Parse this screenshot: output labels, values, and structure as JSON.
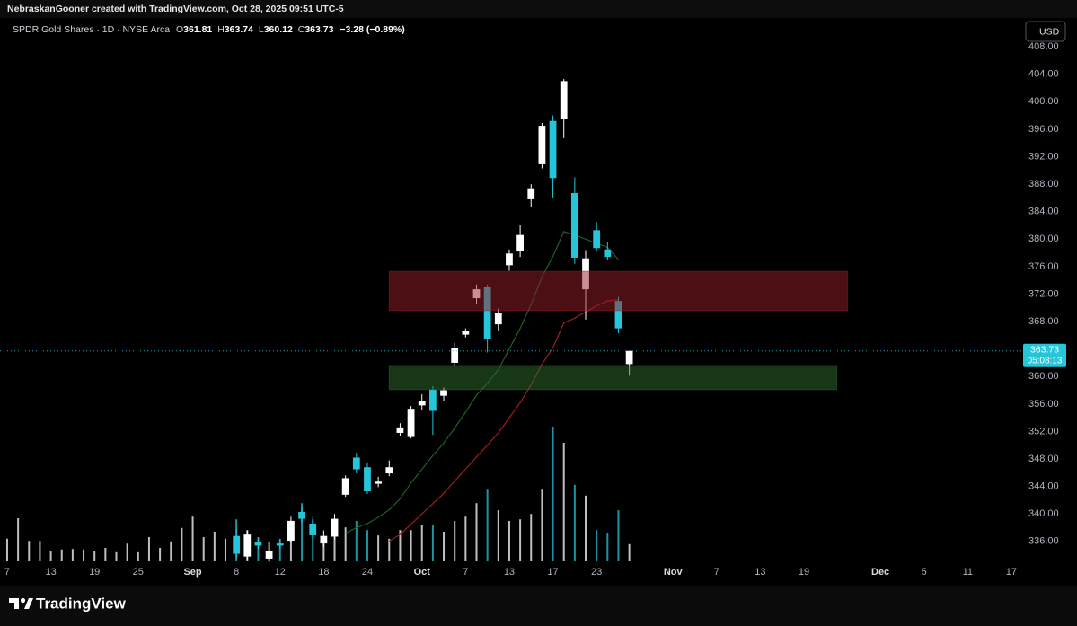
{
  "header": {
    "created_by": "NebraskanGooner created with TradingView.com, Oct 28, 2025 09:51 UTC-5",
    "currency": "USD"
  },
  "footer": {
    "brand": "TradingView"
  },
  "chart_data": {
    "type": "candlestick",
    "title": "SPDR Gold Shares · 1D · NYSE Arca",
    "ohlc_labels": [
      "O",
      "H",
      "L",
      "C"
    ],
    "change": "−3.28 (−0.89%)",
    "countdown": "05:08:13",
    "up_color": "#ffffff",
    "down_color": "#26c6da",
    "categories": [
      "7",
      null,
      null,
      null,
      "13",
      null,
      null,
      null,
      "19",
      null,
      null,
      null,
      "25",
      null,
      null,
      null,
      null,
      "Sep",
      null,
      null,
      null,
      "8",
      null,
      null,
      null,
      "12",
      null,
      null,
      null,
      "18",
      null,
      null,
      null,
      "24",
      null,
      null,
      null,
      null,
      "Oct",
      null,
      null,
      null,
      "7",
      null,
      null,
      null,
      "13",
      null,
      null,
      null,
      "17",
      null,
      null,
      null,
      "23",
      null,
      null,
      null,
      null,
      null,
      null,
      "Nov",
      null,
      null,
      null,
      "7",
      null,
      null,
      null,
      "13",
      null,
      null,
      null,
      "19",
      null,
      null,
      null,
      null,
      null,
      null,
      "Dec",
      null,
      null,
      null,
      "5",
      null,
      null,
      null,
      "11",
      null,
      null,
      null,
      "17"
    ],
    "open": [
      null,
      null,
      null,
      null,
      null,
      null,
      null,
      null,
      null,
      null,
      null,
      null,
      null,
      null,
      null,
      null,
      null,
      null,
      null,
      null,
      null,
      336.8,
      333.8,
      335.9,
      333.5,
      335.7,
      336.1,
      340.3,
      338.6,
      335.7,
      336.7,
      342.8,
      348.2,
      346.8,
      344.4,
      345.9,
      351.8,
      351.2,
      355.8,
      358.1,
      357.2,
      362.0,
      366.1,
      371.4,
      373.1,
      367.6,
      376.2,
      378.2,
      385.8,
      390.9,
      397.2,
      397.5,
      386.7,
      372.7,
      381.3,
      378.5,
      371.0,
      361.81,
      null,
      null,
      null,
      null,
      null,
      null,
      null,
      null,
      null,
      null,
      null,
      null,
      null,
      null,
      null,
      null,
      null,
      null,
      null,
      null,
      null,
      null,
      null,
      null,
      null,
      null,
      null,
      null,
      null,
      null,
      null,
      null,
      null,
      null,
      null
    ],
    "high": [
      null,
      null,
      null,
      null,
      null,
      null,
      null,
      null,
      null,
      null,
      null,
      null,
      null,
      null,
      null,
      null,
      null,
      null,
      null,
      null,
      null,
      337.8,
      337.6,
      336.5,
      335.3,
      336.2,
      339.6,
      341.0,
      339.6,
      337.6,
      340.0,
      345.6,
      348.9,
      347.5,
      345.4,
      347.8,
      353.2,
      355.7,
      357.4,
      358.6,
      358.4,
      364.9,
      367.0,
      373.4,
      373.4,
      369.9,
      378.5,
      382.0,
      388.0,
      396.9,
      398.0,
      403.3,
      389.0,
      378.4,
      382.5,
      379.6,
      371.6,
      363.74,
      null,
      null,
      null,
      null,
      null,
      null,
      null,
      null,
      null,
      null,
      null,
      null,
      null,
      null,
      null,
      null,
      null,
      null,
      null,
      null,
      null,
      null,
      null,
      null,
      null,
      null,
      null,
      null,
      null,
      null,
      null,
      null,
      null,
      null,
      null
    ],
    "low": [
      null,
      null,
      null,
      null,
      null,
      null,
      null,
      null,
      null,
      null,
      null,
      null,
      null,
      null,
      null,
      null,
      null,
      null,
      null,
      null,
      null,
      333.6,
      333.4,
      334.9,
      332.9,
      334.9,
      335.8,
      338.8,
      336.3,
      335.2,
      336.3,
      342.5,
      345.9,
      342.9,
      343.9,
      345.5,
      351.4,
      351.0,
      355.2,
      351.5,
      356.4,
      361.4,
      365.7,
      370.6,
      363.5,
      366.7,
      375.4,
      377.4,
      384.6,
      390.3,
      386.0,
      394.7,
      376.4,
      368.3,
      378.2,
      376.9,
      366.3,
      360.12,
      null,
      null,
      null,
      null,
      null,
      null,
      null,
      null,
      null,
      null,
      null,
      null,
      null,
      null,
      null,
      null,
      null,
      null,
      null,
      null,
      null,
      null,
      null,
      null,
      null,
      null,
      null,
      null,
      null,
      null,
      null,
      null,
      null,
      null,
      null
    ],
    "close": [
      null,
      null,
      null,
      null,
      null,
      null,
      null,
      null,
      null,
      null,
      null,
      null,
      null,
      null,
      null,
      null,
      null,
      null,
      null,
      null,
      null,
      334.2,
      337.0,
      335.4,
      334.6,
      335.4,
      339.0,
      339.3,
      336.9,
      336.8,
      339.3,
      345.2,
      346.5,
      343.3,
      344.7,
      346.8,
      352.6,
      355.3,
      356.4,
      355.0,
      358.0,
      364.1,
      366.6,
      372.7,
      365.4,
      369.2,
      377.9,
      380.6,
      387.4,
      396.5,
      388.9,
      403.0,
      377.3,
      377.2,
      378.7,
      377.4,
      367.01,
      363.73,
      null,
      null,
      null,
      null,
      null,
      null,
      null,
      null,
      null,
      null,
      null,
      null,
      null,
      null,
      null,
      null,
      null,
      null,
      null,
      null,
      null,
      null,
      null,
      null,
      null,
      null,
      null,
      null,
      null,
      null,
      null,
      null,
      null,
      null,
      null
    ],
    "volume": [
      4.2,
      8.0,
      3.8,
      3.8,
      2.0,
      2.2,
      2.3,
      2.2,
      2.0,
      2.5,
      1.7,
      3.3,
      1.7,
      4.5,
      2.5,
      3.7,
      6.2,
      8.3,
      4.5,
      5.5,
      4.2,
      7.8,
      5.8,
      4.5,
      3.7,
      4.2,
      5.5,
      10.8,
      7.8,
      4.2,
      5.5,
      6.3,
      7.5,
      5.8,
      4.8,
      4.2,
      5.8,
      5.8,
      6.7,
      6.7,
      5.5,
      7.5,
      8.3,
      10.8,
      13.3,
      9.5,
      7.5,
      7.8,
      8.8,
      13.3,
      25.0,
      22.0,
      14.2,
      12.2,
      5.8,
      5.2,
      9.5,
      3.2,
      null,
      null,
      null,
      null,
      null,
      null,
      null,
      null,
      null,
      null,
      null,
      null,
      null,
      null,
      null,
      null,
      null,
      null,
      null,
      null,
      null,
      null,
      null,
      null,
      null,
      null,
      null,
      null,
      null,
      null,
      null,
      null,
      null,
      null,
      null
    ],
    "moving_averages": [
      {
        "color": "#1f5f27",
        "values": [
          null,
          null,
          null,
          null,
          null,
          null,
          null,
          null,
          null,
          null,
          null,
          null,
          null,
          null,
          null,
          null,
          null,
          null,
          null,
          null,
          null,
          null,
          null,
          null,
          null,
          null,
          null,
          null,
          null,
          null,
          null,
          337.2,
          338.0,
          338.6,
          339.5,
          340.6,
          342.2,
          344.5,
          346.5,
          348.5,
          350.3,
          352.5,
          354.8,
          357.3,
          359.0,
          361.0,
          364.0,
          367.0,
          370.5,
          374.5,
          377.5,
          381.1,
          380.6,
          380.0,
          379.4,
          378.8,
          377.0,
          null,
          null,
          null,
          null,
          null,
          null,
          null,
          null,
          null,
          null,
          null,
          null,
          null,
          null,
          null,
          null,
          null,
          null,
          null,
          null,
          null,
          null,
          null,
          null,
          null,
          null,
          null,
          null,
          null,
          null,
          null,
          null,
          null,
          null,
          null
        ]
      },
      {
        "color": "#a01c1c",
        "values": [
          null,
          null,
          null,
          null,
          null,
          null,
          null,
          null,
          null,
          null,
          null,
          null,
          null,
          null,
          null,
          null,
          null,
          null,
          null,
          null,
          null,
          null,
          null,
          null,
          null,
          null,
          null,
          null,
          null,
          null,
          null,
          null,
          null,
          null,
          null,
          336.0,
          337.0,
          338.5,
          340.0,
          341.5,
          343.0,
          344.8,
          346.5,
          348.3,
          350.0,
          351.8,
          354.0,
          356.2,
          358.8,
          361.8,
          364.2,
          367.8,
          368.5,
          369.4,
          370.3,
          371.0,
          371.2,
          null,
          null,
          null,
          null,
          null,
          null,
          null,
          null,
          null,
          null,
          null,
          null,
          null,
          null,
          null,
          null,
          null,
          null,
          null,
          null,
          null,
          null,
          null,
          null,
          null,
          null,
          null,
          null,
          null,
          null,
          null,
          null,
          null,
          null,
          null
        ]
      }
    ],
    "zones": [
      {
        "color": "rgba(150,30,40,0.5)",
        "range": [
          369.6,
          375.3
        ],
        "x": [
          35,
          77
        ]
      },
      {
        "color": "rgba(45,110,45,0.5)",
        "range": [
          358.1,
          361.6
        ],
        "x": [
          35,
          76
        ]
      }
    ],
    "ylim": [
      333.1,
      412.2
    ],
    "yticks": [
      {
        "value": 336,
        "label": "336.00"
      },
      {
        "value": 340,
        "label": "340.00"
      },
      {
        "value": 344,
        "label": "344.00"
      },
      {
        "value": 348,
        "label": "348.00"
      },
      {
        "value": 352,
        "label": "352.00"
      },
      {
        "value": 356,
        "label": "356.00"
      },
      {
        "value": 360,
        "label": "360.00"
      },
      {
        "value": 364,
        "label": "364.00"
      },
      {
        "value": 368,
        "label": "368.00"
      },
      {
        "value": 372,
        "label": "372.00"
      },
      {
        "value": 376,
        "label": "376.00"
      },
      {
        "value": 380,
        "label": "380.00"
      },
      {
        "value": 384,
        "label": "384.00"
      },
      {
        "value": 388,
        "label": "388.00"
      },
      {
        "value": 392,
        "label": "392.00"
      },
      {
        "value": 396,
        "label": "396.00"
      },
      {
        "value": 400,
        "label": "400.00"
      },
      {
        "value": 404,
        "label": "404.00"
      },
      {
        "value": 408,
        "label": "408.00"
      }
    ]
  }
}
